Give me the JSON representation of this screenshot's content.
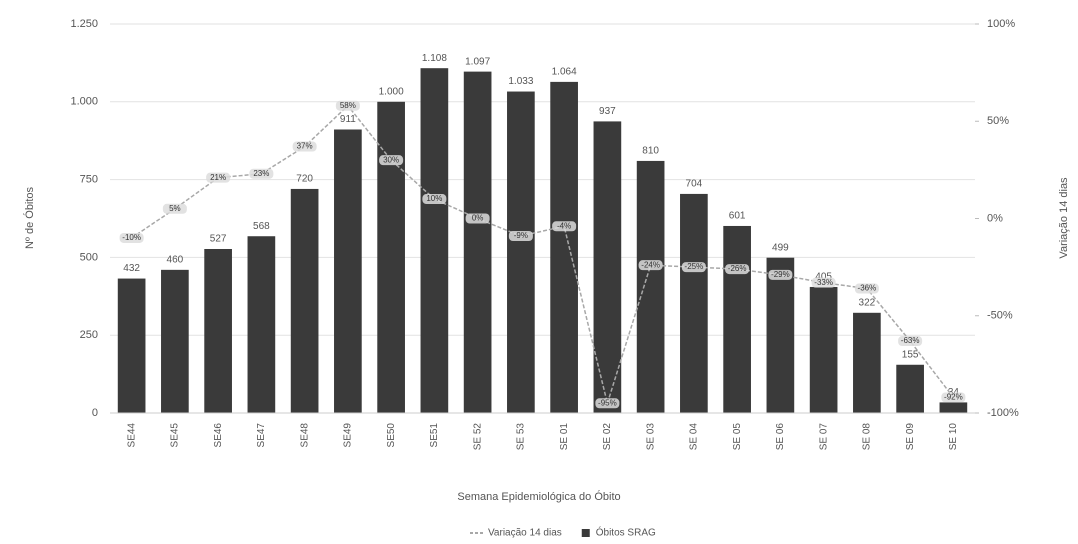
{
  "chart_data": {
    "type": "bar_line",
    "x_label": "Semana Epidemiológica do Óbito",
    "y_label": "Nº de Óbitos",
    "y2_label": "Variação 14 dias",
    "categories": [
      "SE44",
      "SE45",
      "SE46",
      "SE47",
      "SE48",
      "SE49",
      "SE50",
      "SE51",
      "SE 52",
      "SE 53",
      "SE 01",
      "SE 02",
      "SE 03",
      "SE 04",
      "SE 05",
      "SE 06",
      "SE 07",
      "SE 08",
      "SE 09",
      "SE 10"
    ],
    "series": [
      {
        "name": "Óbitos SRAG",
        "type": "bar",
        "color": "#3a3a3a",
        "values": [
          432,
          460,
          527,
          568,
          720,
          911,
          1000,
          1108,
          1097,
          1033,
          1064,
          937,
          810,
          704,
          601,
          499,
          405,
          322,
          155,
          34
        ],
        "value_labels": [
          "432",
          "460",
          "527",
          "568",
          "720",
          "911",
          "1.000",
          "1.108",
          "1.097",
          "1.033",
          "1.064",
          "937",
          "810",
          "704",
          "601",
          "499",
          "405",
          "322",
          "155",
          "34"
        ]
      },
      {
        "name": "Variação 14 dias",
        "type": "line",
        "color": "#a8a8a8",
        "axis": "y2",
        "values": [
          -10,
          5,
          21,
          23,
          37,
          58,
          30,
          10,
          0,
          -9,
          -4,
          -95,
          -24,
          -25,
          -26,
          -29,
          -33,
          -36,
          -63,
          -92
        ],
        "value_labels": [
          "-10%",
          "5%",
          "21%",
          "23%",
          "37%",
          "58%",
          "30%",
          "10%",
          "0%",
          "-9%",
          "-4%",
          "-95%",
          "-24%",
          "-25%",
          "-26%",
          "-29%",
          "-33%",
          "-36%",
          "-63%",
          "-92%"
        ]
      }
    ],
    "ylim": [
      0,
      1250
    ],
    "yticks": [
      0,
      250,
      500,
      750,
      {
        "value": 1000,
        "label": "1.000"
      },
      {
        "value": 1250,
        "label": "1.250"
      }
    ],
    "y2lim": [
      -100,
      100
    ],
    "y2ticks": [
      {
        "value": -100,
        "label": "-100%"
      },
      {
        "value": -50,
        "label": "-50%"
      },
      {
        "value": 0,
        "label": "0%"
      },
      {
        "value": 50,
        "label": "50%"
      },
      {
        "value": 100,
        "label": "100%"
      }
    ],
    "grid": true,
    "legend": "bottom"
  }
}
